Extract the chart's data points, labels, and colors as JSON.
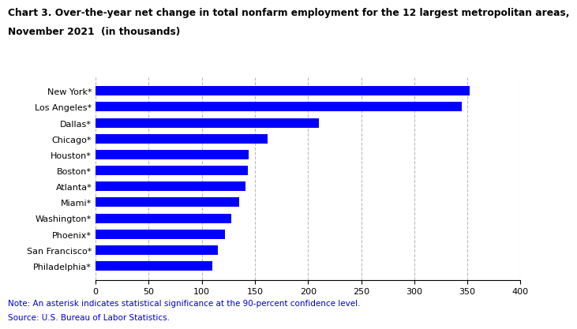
{
  "title_line1": "Chart 3. Over-the-year net change in total nonfarm employment for the 12 largest metropolitan areas,",
  "title_line2": "November 2021  (in thousands)",
  "categories": [
    "Philadelphia*",
    "San Francisco*",
    "Phoenix*",
    "Washington*",
    "Miami*",
    "Atlanta*",
    "Boston*",
    "Houston*",
    "Chicago*",
    "Dallas*",
    "Los Angeles*",
    "New York*"
  ],
  "values": [
    110,
    115,
    122,
    128,
    135,
    141,
    143,
    144,
    162,
    210,
    345,
    352
  ],
  "bar_color": "#0000FF",
  "xlim": [
    0,
    400
  ],
  "xticks": [
    0,
    50,
    100,
    150,
    200,
    250,
    300,
    350,
    400
  ],
  "note_line1": "Note: An asterisk indicates statistical significance at the 90-percent confidence level.",
  "note_line2": "Source: U.S. Bureau of Labor Statistics.",
  "note_color": "#0000CD",
  "title_color": "#000000",
  "title_fontsize": 8.8,
  "tick_fontsize": 8.0,
  "note_fontsize": 7.5,
  "grid_color": "#bbbbbb",
  "grid_style": "--",
  "bar_height": 0.6
}
